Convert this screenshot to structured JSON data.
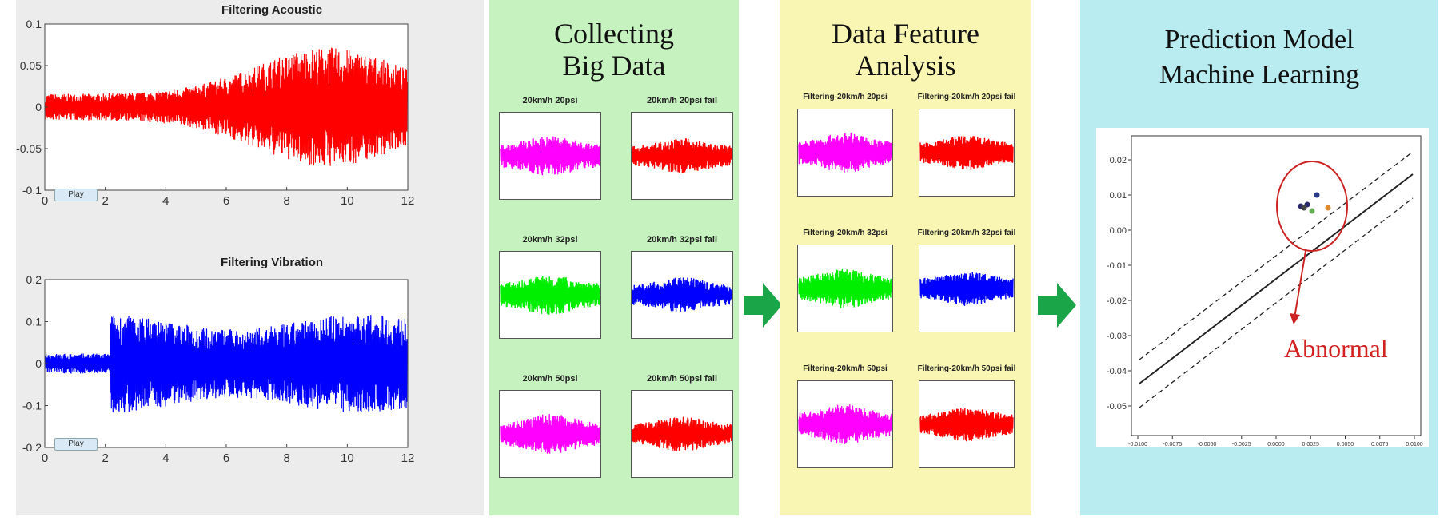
{
  "waveforms": {
    "acoustic": {
      "title": "Filtering Acoustic",
      "yticks": [
        "0.1",
        "0.05",
        "0",
        "-0.05",
        "-0.1"
      ],
      "xticks": [
        "0",
        "2",
        "4",
        "6",
        "8",
        "10",
        "12"
      ],
      "color": "#ff0000",
      "button": "Play"
    },
    "vibration": {
      "title": "Filtering Vibration",
      "yticks": [
        "0.2",
        "0.1",
        "0",
        "-0.1",
        "-0.2"
      ],
      "xticks": [
        "0",
        "2",
        "4",
        "6",
        "8",
        "10",
        "12"
      ],
      "color": "#0000ff",
      "button": "Play"
    }
  },
  "big_data": {
    "title_line1": "Collecting",
    "title_line2": "Big Data",
    "plots": [
      {
        "title": "20km/h 20psi",
        "color": "#ff00ff"
      },
      {
        "title": "20km/h 20psi fail",
        "color": "#ff0000"
      },
      {
        "title": "20km/h 32psi",
        "color": "#00ee00"
      },
      {
        "title": "20km/h 32psi fail",
        "color": "#0000ff"
      },
      {
        "title": "20km/h 50psi",
        "color": "#ff00ff"
      },
      {
        "title": "20km/h 50psi fail",
        "color": "#ff0000"
      }
    ]
  },
  "feature_analysis": {
    "title_line1": "Data Feature",
    "title_line2": "Analysis",
    "plots": [
      {
        "title": "Filtering-20km/h 20psi",
        "color": "#ff00ff"
      },
      {
        "title": "Filtering-20km/h 20psi fail",
        "color": "#ff0000"
      },
      {
        "title": "Filtering-20km/h 32psi",
        "color": "#00ee00"
      },
      {
        "title": "Filtering-20km/h 32psi fail",
        "color": "#0000ff"
      },
      {
        "title": "Filtering-20km/h 50psi",
        "color": "#ff00ff"
      },
      {
        "title": "Filtering-20km/h 50psi fail",
        "color": "#ff0000"
      }
    ]
  },
  "prediction": {
    "title_line1": "Prediction Model",
    "title_line2": "Machine Learning",
    "annotation": "Abnormal",
    "yticks": [
      "0.02",
      "0.01",
      "0.00",
      "-0.01",
      "-0.02",
      "-0.03",
      "-0.04",
      "-0.05"
    ],
    "xticks": [
      "-0.0100",
      "-0.0075",
      "-0.0050",
      "-0.0025",
      "0.0000",
      "0.0025",
      "0.0050",
      "0.0075",
      "0.0100"
    ]
  },
  "arrow_color": "#1aa548"
}
